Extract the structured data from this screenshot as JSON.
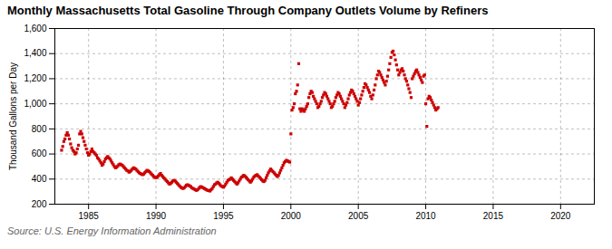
{
  "chart_data": {
    "type": "scatter",
    "title": "Monthly Massachusetts Total Gasoline Through Company Outlets Volume by Refiners",
    "ylabel": "Thousand Gallons per Day",
    "source": "Source: U.S. Energy Information Administration",
    "color": "#cc0000",
    "marker": "square",
    "grid": true,
    "xlim": [
      1982.5,
      2022.5
    ],
    "xticks": [
      1985,
      1990,
      1995,
      2000,
      2005,
      2010,
      2015,
      2020
    ],
    "ylim": [
      200,
      1600
    ],
    "yticks": [
      200,
      400,
      600,
      800,
      {
        "value": 1000,
        "label": "1,000"
      },
      {
        "value": 1200,
        "label": "1,200"
      },
      {
        "value": 1400,
        "label": "1,400"
      },
      {
        "value": 1600,
        "label": "1,600"
      }
    ],
    "x": [
      1983.0,
      1983.083,
      1983.167,
      1983.25,
      1983.333,
      1983.417,
      1983.5,
      1983.583,
      1983.667,
      1983.75,
      1983.833,
      1983.917,
      1984.0,
      1984.083,
      1984.167,
      1984.25,
      1984.333,
      1984.417,
      1984.5,
      1984.583,
      1984.667,
      1984.75,
      1984.833,
      1984.917,
      1985.0,
      1985.083,
      1985.167,
      1985.25,
      1985.333,
      1985.417,
      1985.5,
      1985.583,
      1985.667,
      1985.75,
      1985.833,
      1985.917,
      1986.0,
      1986.083,
      1986.167,
      1986.25,
      1986.333,
      1986.417,
      1986.5,
      1986.583,
      1986.667,
      1986.75,
      1986.833,
      1986.917,
      1987.0,
      1987.083,
      1987.167,
      1987.25,
      1987.333,
      1987.417,
      1987.5,
      1987.583,
      1987.667,
      1987.75,
      1987.833,
      1987.917,
      1988.0,
      1988.083,
      1988.167,
      1988.25,
      1988.333,
      1988.417,
      1988.5,
      1988.583,
      1988.667,
      1988.75,
      1988.833,
      1988.917,
      1989.0,
      1989.083,
      1989.167,
      1989.25,
      1989.333,
      1989.417,
      1989.5,
      1989.583,
      1989.667,
      1989.75,
      1989.833,
      1989.917,
      1990.0,
      1990.083,
      1990.167,
      1990.25,
      1990.333,
      1990.417,
      1990.5,
      1990.583,
      1990.667,
      1990.75,
      1990.833,
      1990.917,
      1991.0,
      1991.083,
      1991.167,
      1991.25,
      1991.333,
      1991.417,
      1991.5,
      1991.583,
      1991.667,
      1991.75,
      1991.833,
      1991.917,
      1992.0,
      1992.083,
      1992.167,
      1992.25,
      1992.333,
      1992.417,
      1992.5,
      1992.583,
      1992.667,
      1992.75,
      1992.833,
      1992.917,
      1993.0,
      1993.083,
      1993.167,
      1993.25,
      1993.333,
      1993.417,
      1993.5,
      1993.583,
      1993.667,
      1993.75,
      1993.833,
      1993.917,
      1994.0,
      1994.083,
      1994.167,
      1994.25,
      1994.333,
      1994.417,
      1994.5,
      1994.583,
      1994.667,
      1994.75,
      1994.833,
      1994.917,
      1995.0,
      1995.083,
      1995.167,
      1995.25,
      1995.333,
      1995.417,
      1995.5,
      1995.583,
      1995.667,
      1995.75,
      1995.833,
      1995.917,
      1996.0,
      1996.083,
      1996.167,
      1996.25,
      1996.333,
      1996.417,
      1996.5,
      1996.583,
      1996.667,
      1996.75,
      1996.833,
      1996.917,
      1997.0,
      1997.083,
      1997.167,
      1997.25,
      1997.333,
      1997.417,
      1997.5,
      1997.583,
      1997.667,
      1997.75,
      1997.833,
      1997.917,
      1998.0,
      1998.083,
      1998.167,
      1998.25,
      1998.333,
      1998.417,
      1998.5,
      1998.583,
      1998.667,
      1998.75,
      1998.833,
      1998.917,
      1999.0,
      1999.083,
      1999.167,
      1999.25,
      1999.333,
      1999.417,
      1999.5,
      1999.583,
      1999.667,
      1999.75,
      1999.833,
      1999.917,
      2000.0,
      2000.083,
      2000.167,
      2000.25,
      2000.333,
      2000.417,
      2000.5,
      2000.583,
      2000.667,
      2000.75,
      2000.833,
      2000.917,
      2001.0,
      2001.083,
      2001.167,
      2001.25,
      2001.333,
      2001.417,
      2001.5,
      2001.583,
      2001.667,
      2001.75,
      2001.833,
      2001.917,
      2002.0,
      2002.083,
      2002.167,
      2002.25,
      2002.333,
      2002.417,
      2002.5,
      2002.583,
      2002.667,
      2002.75,
      2002.833,
      2002.917,
      2003.0,
      2003.083,
      2003.167,
      2003.25,
      2003.333,
      2003.417,
      2003.5,
      2003.583,
      2003.667,
      2003.75,
      2003.833,
      2003.917,
      2004.0,
      2004.083,
      2004.167,
      2004.25,
      2004.333,
      2004.417,
      2004.5,
      2004.583,
      2004.667,
      2004.75,
      2004.833,
      2004.917,
      2005.0,
      2005.083,
      2005.167,
      2005.25,
      2005.333,
      2005.417,
      2005.5,
      2005.583,
      2005.667,
      2005.75,
      2005.833,
      2005.917,
      2006.0,
      2006.083,
      2006.167,
      2006.25,
      2006.333,
      2006.417,
      2006.5,
      2006.583,
      2006.667,
      2006.75,
      2006.833,
      2006.917,
      2007.0,
      2007.083,
      2007.167,
      2007.25,
      2007.333,
      2007.417,
      2007.5,
      2007.583,
      2007.667,
      2007.75,
      2007.833,
      2007.917,
      2008.0,
      2008.083,
      2008.167,
      2008.25,
      2008.333,
      2008.417,
      2008.5,
      2008.583,
      2008.667,
      2008.75,
      2008.833,
      2008.917,
      2009.0,
      2009.083,
      2009.167,
      2009.25,
      2009.333,
      2009.417,
      2009.5,
      2009.583,
      2009.667,
      2009.75,
      2009.833,
      2009.917,
      2010.0,
      2010.083,
      2010.167,
      2010.25,
      2010.333,
      2010.417,
      2010.5,
      2010.583,
      2010.667,
      2010.75,
      2010.833,
      2010.917
    ],
    "values": [
      630,
      660,
      700,
      720,
      750,
      770,
      750,
      720,
      680,
      650,
      630,
      620,
      600,
      610,
      640,
      670,
      760,
      780,
      760,
      730,
      700,
      670,
      640,
      610,
      590,
      600,
      620,
      640,
      620,
      610,
      600,
      590,
      570,
      560,
      545,
      530,
      510,
      520,
      540,
      560,
      570,
      580,
      570,
      560,
      545,
      530,
      515,
      500,
      490,
      495,
      505,
      515,
      520,
      515,
      510,
      500,
      490,
      480,
      470,
      465,
      455,
      460,
      470,
      480,
      490,
      485,
      480,
      470,
      460,
      450,
      445,
      440,
      435,
      440,
      450,
      460,
      470,
      465,
      460,
      450,
      440,
      430,
      420,
      415,
      410,
      415,
      425,
      435,
      445,
      430,
      420,
      410,
      400,
      390,
      380,
      370,
      360,
      365,
      375,
      385,
      390,
      385,
      375,
      365,
      355,
      345,
      335,
      330,
      325,
      330,
      340,
      350,
      355,
      350,
      345,
      340,
      330,
      325,
      320,
      315,
      310,
      315,
      325,
      335,
      340,
      335,
      330,
      325,
      320,
      315,
      310,
      308,
      305,
      315,
      325,
      340,
      355,
      360,
      370,
      375,
      365,
      355,
      345,
      340,
      335,
      345,
      360,
      375,
      390,
      395,
      400,
      410,
      400,
      390,
      380,
      370,
      360,
      370,
      385,
      400,
      415,
      420,
      430,
      425,
      415,
      405,
      395,
      385,
      375,
      385,
      400,
      415,
      425,
      430,
      435,
      425,
      415,
      405,
      395,
      385,
      380,
      390,
      410,
      430,
      450,
      465,
      480,
      470,
      460,
      450,
      440,
      430,
      420,
      430,
      450,
      470,
      490,
      510,
      530,
      540,
      550,
      545,
      540,
      535,
      760,
      950,
      970,
      1000,
      1080,
      1100,
      1150,
      1320,
      960,
      940,
      960,
      950,
      940,
      960,
      980,
      1000,
      1050,
      1080,
      1100,
      1090,
      1060,
      1040,
      1020,
      1000,
      970,
      980,
      1000,
      1020,
      1050,
      1070,
      1090,
      1080,
      1060,
      1040,
      1020,
      1000,
      970,
      980,
      1000,
      1020,
      1050,
      1070,
      1090,
      1080,
      1060,
      1040,
      1020,
      1000,
      970,
      990,
      1010,
      1040,
      1070,
      1090,
      1110,
      1100,
      1080,
      1060,
      1040,
      1020,
      990,
      1010,
      1040,
      1070,
      1100,
      1130,
      1160,
      1150,
      1130,
      1110,
      1090,
      1060,
      1040,
      1070,
      1110,
      1150,
      1200,
      1230,
      1260,
      1250,
      1230,
      1210,
      1190,
      1170,
      1150,
      1180,
      1220,
      1270,
      1320,
      1370,
      1410,
      1420,
      1390,
      1350,
      1310,
      1270,
      1230,
      1250,
      1270,
      1280,
      1260,
      1230,
      1200,
      1180,
      1150,
      1120,
      1090,
      1050,
      1200,
      1220,
      1240,
      1260,
      1270,
      1250,
      1230,
      1210,
      1190,
      1170,
      1220,
      1230,
      1000,
      820,
      1040,
      1060,
      1050,
      1030,
      1010,
      990,
      970,
      950,
      960,
      970
    ]
  }
}
